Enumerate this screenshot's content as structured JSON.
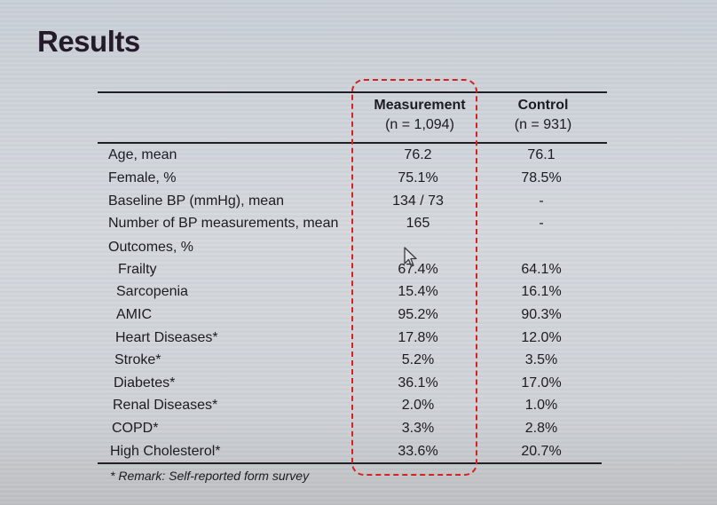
{
  "title": "Results",
  "columns": {
    "measurement": {
      "label": "Measurement",
      "n": "(n = 1,094)"
    },
    "control": {
      "label": "Control",
      "n": "(n = 931)"
    }
  },
  "rows": [
    {
      "label": "Age, mean",
      "measurement": "76.2",
      "control": "76.1",
      "indent": false
    },
    {
      "label": "Female, %",
      "measurement": "75.1%",
      "control": "78.5%",
      "indent": false
    },
    {
      "label": "Baseline BP (mmHg), mean",
      "measurement": "134 / 73",
      "control": "-",
      "indent": false
    },
    {
      "label": "Number of BP measurements, mean",
      "measurement": "165",
      "control": "-",
      "indent": false
    },
    {
      "label": "Outcomes, %",
      "measurement": "",
      "control": "",
      "indent": false
    },
    {
      "label": "Frailty",
      "measurement": "67.4%",
      "control": "64.1%",
      "indent": true
    },
    {
      "label": "Sarcopenia",
      "measurement": "15.4%",
      "control": "16.1%",
      "indent": true
    },
    {
      "label": "AMIC",
      "measurement": "95.2%",
      "control": "90.3%",
      "indent": true
    },
    {
      "label": "Heart Diseases*",
      "measurement": "17.8%",
      "control": "12.0%",
      "indent": true
    },
    {
      "label": "Stroke*",
      "measurement": "5.2%",
      "control": "3.5%",
      "indent": true
    },
    {
      "label": "Diabetes*",
      "measurement": "36.1%",
      "control": "17.0%",
      "indent": true
    },
    {
      "label": "Renal Diseases*",
      "measurement": "2.0%",
      "control": "1.0%",
      "indent": true
    },
    {
      "label": "COPD*",
      "measurement": "3.3%",
      "control": "2.8%",
      "indent": true
    },
    {
      "label": "High Cholesterol*",
      "measurement": "33.6%",
      "control": "20.7%",
      "indent": true
    }
  ],
  "remark": "* Remark: Self-reported form survey",
  "colors": {
    "highlight": "#d32222",
    "text": "#1b1b22"
  },
  "icons": {
    "cursor": "mouse-pointer-icon"
  }
}
